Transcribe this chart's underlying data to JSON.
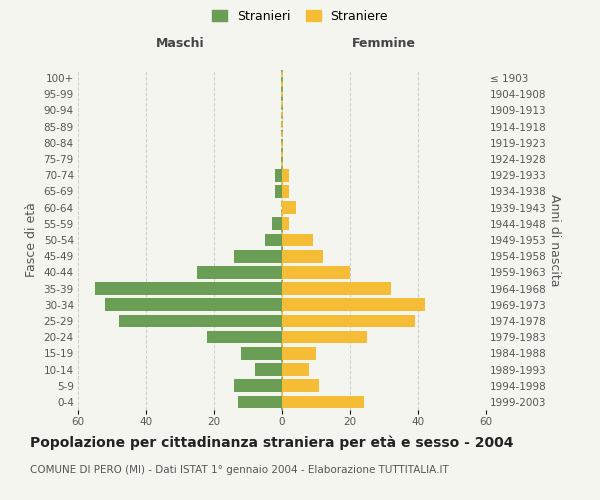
{
  "age_groups": [
    "0-4",
    "5-9",
    "10-14",
    "15-19",
    "20-24",
    "25-29",
    "30-34",
    "35-39",
    "40-44",
    "45-49",
    "50-54",
    "55-59",
    "60-64",
    "65-69",
    "70-74",
    "75-79",
    "80-84",
    "85-89",
    "90-94",
    "95-99",
    "100+"
  ],
  "birth_years": [
    "1999-2003",
    "1994-1998",
    "1989-1993",
    "1984-1988",
    "1979-1983",
    "1974-1978",
    "1969-1973",
    "1964-1968",
    "1959-1963",
    "1954-1958",
    "1949-1953",
    "1944-1948",
    "1939-1943",
    "1934-1938",
    "1929-1933",
    "1924-1928",
    "1919-1923",
    "1914-1918",
    "1909-1913",
    "1904-1908",
    "≤ 1903"
  ],
  "males": [
    13,
    14,
    8,
    12,
    22,
    48,
    52,
    55,
    25,
    14,
    5,
    3,
    0,
    2,
    2,
    0,
    0,
    0,
    0,
    0,
    0
  ],
  "females": [
    24,
    11,
    8,
    10,
    25,
    39,
    42,
    32,
    20,
    12,
    9,
    2,
    4,
    2,
    2,
    0,
    0,
    0,
    0,
    0,
    0
  ],
  "male_color": "#6a9e55",
  "female_color": "#f5bc35",
  "background_color": "#f5f5f0",
  "grid_color": "#cccccc",
  "dashed_line_color_green": "#6a9e55",
  "dashed_line_color_yellow": "#f5bc35",
  "title": "Popolazione per cittadinanza straniera per età e sesso - 2004",
  "subtitle": "COMUNE DI PERO (MI) - Dati ISTAT 1° gennaio 2004 - Elaborazione TUTTITALIA.IT",
  "xlabel_left": "Maschi",
  "xlabel_right": "Femmine",
  "ylabel_left": "Fasce di età",
  "ylabel_right": "Anni di nascita",
  "legend_male": "Stranieri",
  "legend_female": "Straniere",
  "xlim": 60,
  "title_fontsize": 10,
  "subtitle_fontsize": 7.5,
  "tick_fontsize": 7.5,
  "label_fontsize": 9
}
